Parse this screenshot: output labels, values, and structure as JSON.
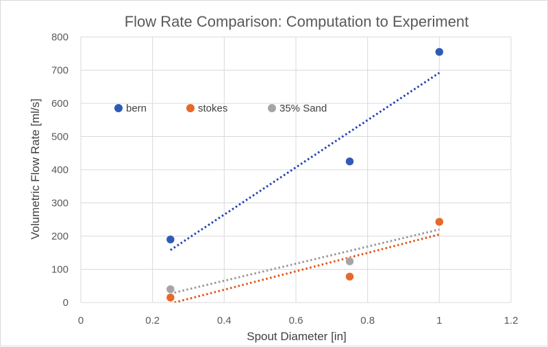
{
  "chart_data": {
    "type": "scatter",
    "title": "Flow Rate Comparison: Computation to Experiment",
    "xlabel": "Spout Diameter [in]",
    "ylabel": "Volumetric Flow Rate [ml/s]",
    "xlim": [
      0,
      1.2
    ],
    "ylim": [
      0,
      800
    ],
    "x_ticks": [
      "0",
      "0.2",
      "0.4",
      "0.6",
      "0.8",
      "1",
      "1.2"
    ],
    "y_ticks": [
      "0",
      "100",
      "200",
      "300",
      "400",
      "500",
      "600",
      "700",
      "800"
    ],
    "grid": true,
    "legend_position": "inside-top-left",
    "series": [
      {
        "name": "bern",
        "color": "#2f5bb7",
        "trendline_color": "#1f3fb0",
        "points": [
          {
            "x": 0.25,
            "y": 190
          },
          {
            "x": 0.75,
            "y": 425
          },
          {
            "x": 1.0,
            "y": 755
          }
        ],
        "trendline": {
          "type": "linear",
          "from": [
            0.25,
            158
          ],
          "to": [
            1.0,
            692
          ]
        }
      },
      {
        "name": "stokes",
        "color": "#e8682a",
        "trendline_color": "#e0541a",
        "points": [
          {
            "x": 0.25,
            "y": 15
          },
          {
            "x": 0.75,
            "y": 78
          },
          {
            "x": 1.0,
            "y": 243
          }
        ],
        "trendline": {
          "type": "linear",
          "from": [
            0.25,
            -3
          ],
          "to": [
            1.0,
            205
          ]
        }
      },
      {
        "name": "35% Sand",
        "color": "#a5a5a5",
        "trendline_color": "#999999",
        "points": [
          {
            "x": 0.25,
            "y": 40
          },
          {
            "x": 0.75,
            "y": 124
          },
          {
            "x": 1.0,
            "y": 244
          }
        ],
        "trendline": {
          "type": "linear",
          "from": [
            0.25,
            27
          ],
          "to": [
            1.0,
            220
          ]
        }
      }
    ]
  }
}
